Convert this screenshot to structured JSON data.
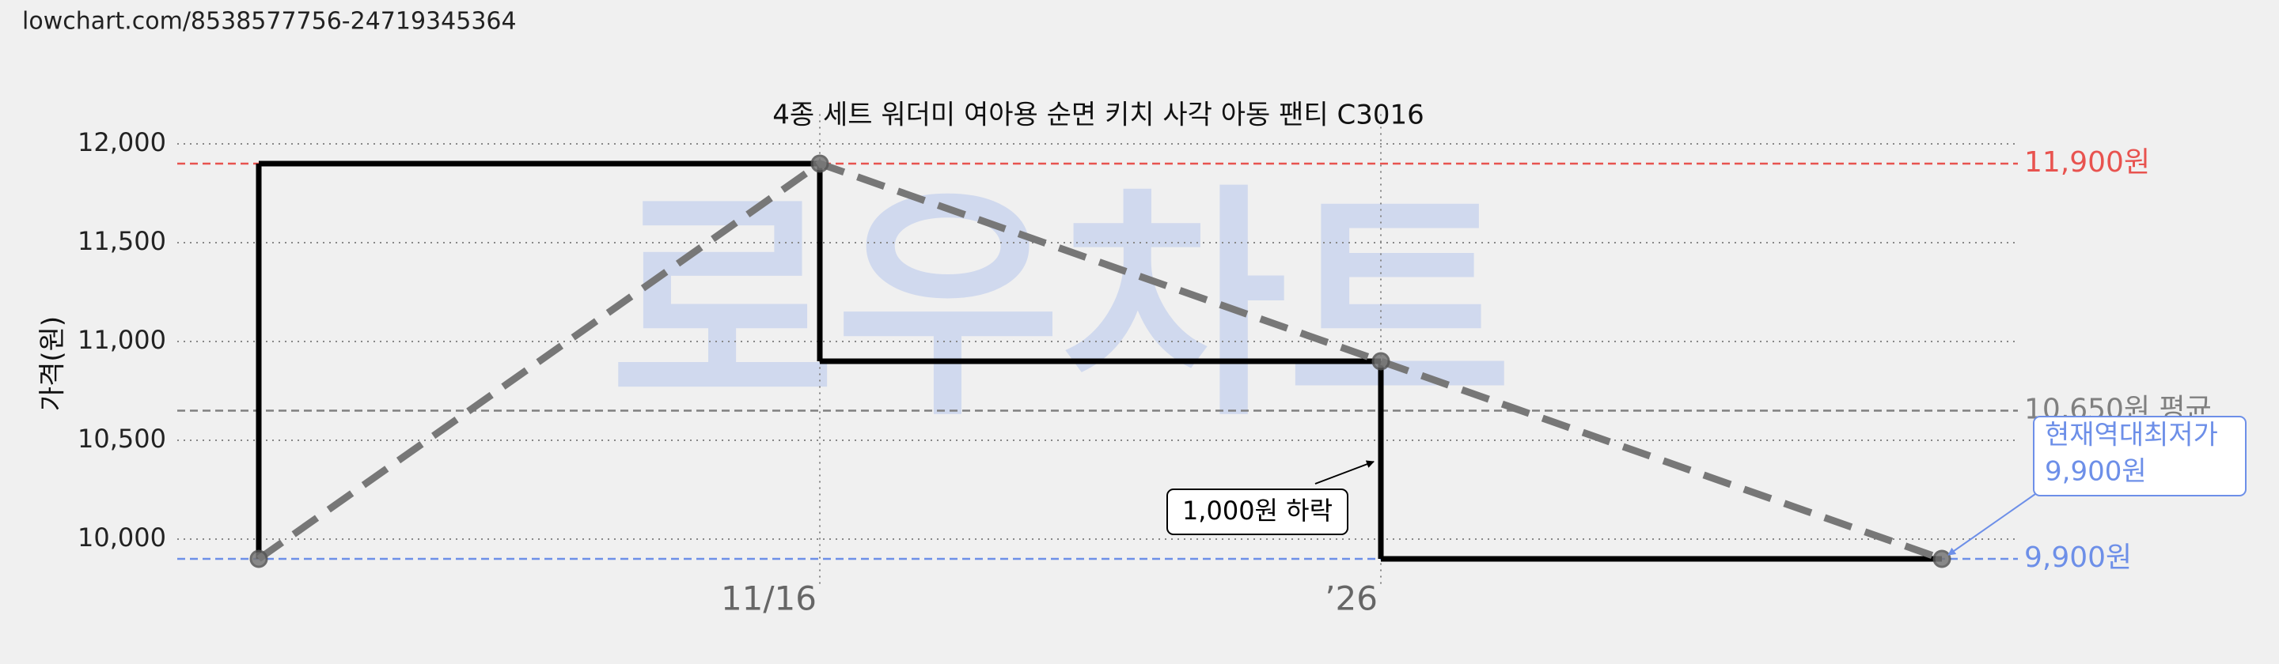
{
  "url": "lowchart.com/8538577756-24719345364",
  "chart_data": {
    "type": "line",
    "title": "4종 세트 워더미 여아용 순면 키치 사각 아동 팬티 C3016",
    "watermark": "로우차트",
    "y_label": "가격(원)",
    "categories": [
      null,
      "11/16",
      "’26",
      null
    ],
    "series": [
      {
        "values": [
          9900,
          11900,
          10900,
          9900
        ],
        "color": "#000000",
        "step_color": "#000000",
        "line_color": "#777777"
      }
    ],
    "ylim": [
      9750,
      12150
    ],
    "yticks": [
      {
        "value": 10000,
        "label": "10,000"
      },
      {
        "value": 10500,
        "label": "10,500"
      },
      {
        "value": 11000,
        "label": "11,000"
      },
      {
        "value": 11500,
        "label": "11,500"
      },
      {
        "value": 12000,
        "label": "12,000"
      }
    ],
    "grid": true,
    "reference_lines": [
      {
        "value": 11900,
        "label": "11,900원",
        "color": "#e8534f"
      },
      {
        "value": 10650,
        "label": "10,650원 평균",
        "color": "#808080"
      },
      {
        "value": 9900,
        "label": "9,900원",
        "color": "#6d8fe8"
      }
    ],
    "annotations": [
      {
        "text": "1,000원 하락",
        "color": "#000000"
      },
      {
        "text": [
          "현재역대최저가",
          "9,900원"
        ],
        "color": "#6d8fe8"
      }
    ]
  }
}
